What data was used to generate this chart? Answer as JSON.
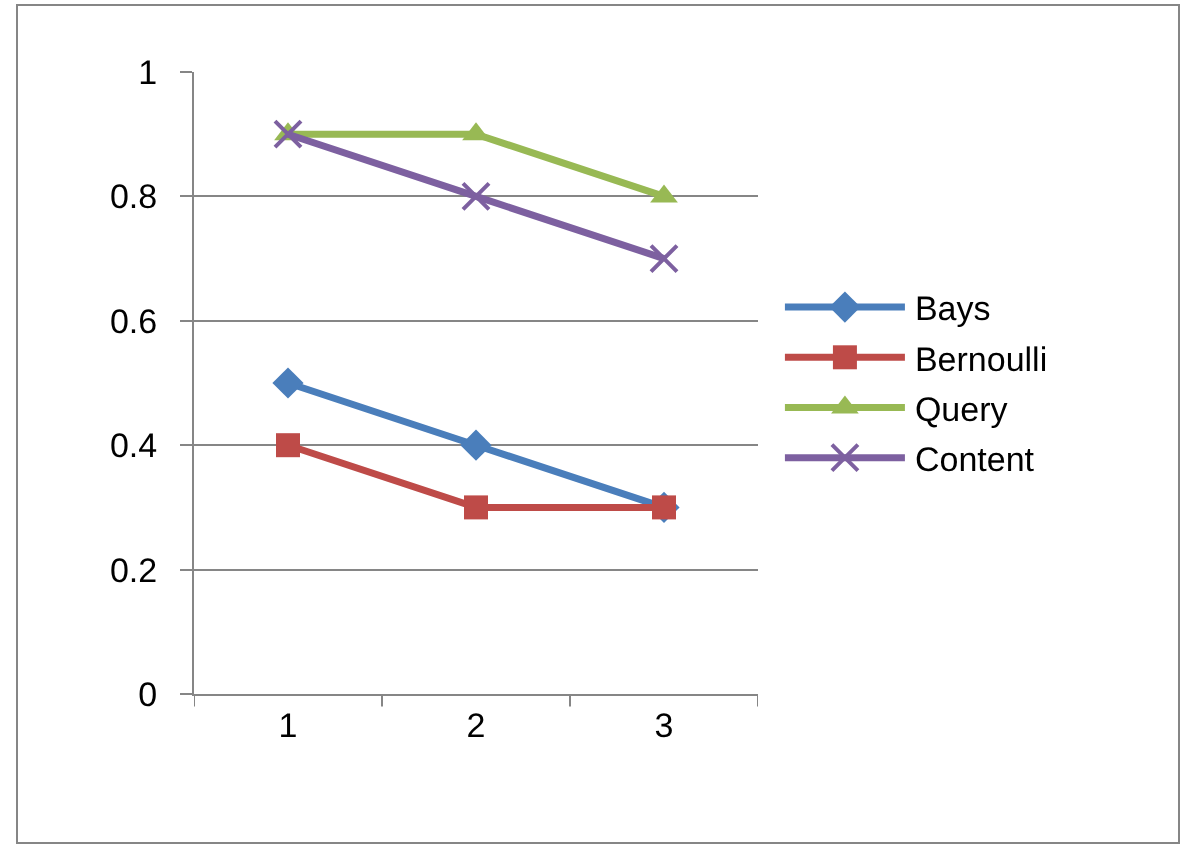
{
  "chart_data": {
    "type": "line",
    "categories": [
      "1",
      "2",
      "3"
    ],
    "series": [
      {
        "name": "Bays",
        "color": "#4a7ebb",
        "marker": "diamond",
        "values": [
          0.5,
          0.4,
          0.3
        ]
      },
      {
        "name": "Bernoulli",
        "color": "#be4b48",
        "marker": "square",
        "values": [
          0.4,
          0.3,
          0.3
        ]
      },
      {
        "name": "Query",
        "color": "#98b954",
        "marker": "triangle",
        "values": [
          0.9,
          0.9,
          0.8
        ]
      },
      {
        "name": "Content",
        "color": "#7d60a0",
        "marker": "cross",
        "values": [
          0.9,
          0.8,
          0.7
        ]
      }
    ],
    "ylim": [
      0,
      1
    ],
    "yticks": [
      0,
      0.2,
      0.4,
      0.6,
      0.8,
      1
    ],
    "grid": "y",
    "legend": "right",
    "line_style": "solid"
  }
}
